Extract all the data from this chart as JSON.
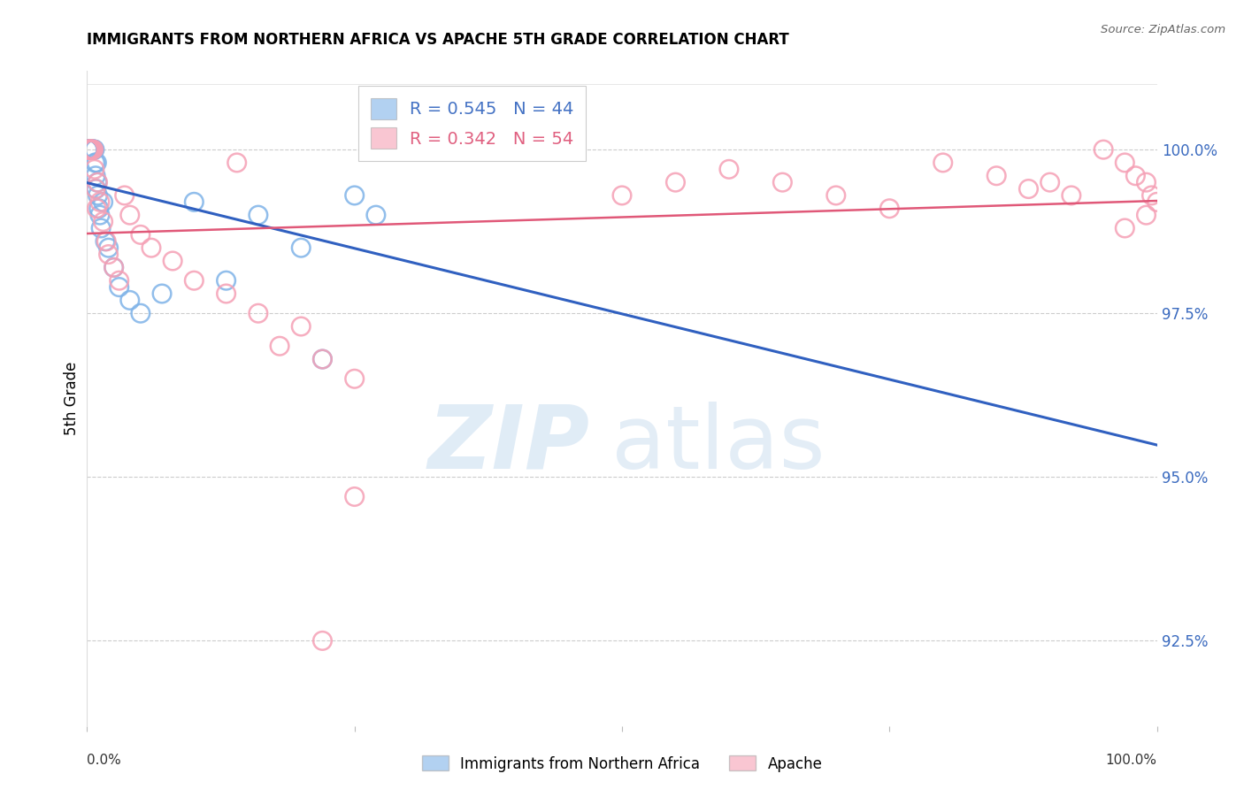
{
  "title": "IMMIGRANTS FROM NORTHERN AFRICA VS APACHE 5TH GRADE CORRELATION CHART",
  "source": "Source: ZipAtlas.com",
  "ylabel": "5th Grade",
  "yticks": [
    92.5,
    95.0,
    97.5,
    100.0
  ],
  "ytick_labels": [
    "92.5%",
    "95.0%",
    "97.5%",
    "100.0%"
  ],
  "xmin": 0.0,
  "xmax": 100.0,
  "ymin": 91.2,
  "ymax": 101.2,
  "blue_R": 0.545,
  "blue_N": 44,
  "pink_R": 0.342,
  "pink_N": 54,
  "blue_color": "#7fb3e8",
  "pink_color": "#f5a0b5",
  "blue_line_color": "#3060c0",
  "pink_line_color": "#e05878",
  "legend_label_blue": "Immigrants from Northern Africa",
  "legend_label_pink": "Apache",
  "blue_x": [
    0.05,
    0.08,
    0.1,
    0.12,
    0.15,
    0.18,
    0.2,
    0.22,
    0.25,
    0.28,
    0.3,
    0.35,
    0.4,
    0.45,
    0.5,
    0.55,
    0.6,
    0.65,
    0.7,
    0.75,
    0.8,
    0.85,
    0.9,
    0.95,
    1.0,
    1.1,
    1.2,
    1.3,
    1.5,
    1.7,
    2.0,
    2.5,
    3.0,
    4.0,
    5.0,
    7.0,
    10.0,
    13.0,
    16.0,
    20.0,
    22.0,
    25.0,
    27.0,
    30.0
  ],
  "blue_y": [
    100.0,
    100.0,
    100.0,
    100.0,
    100.0,
    100.0,
    100.0,
    100.0,
    100.0,
    100.0,
    100.0,
    100.0,
    100.0,
    100.0,
    100.0,
    100.0,
    100.0,
    100.0,
    100.0,
    99.8,
    99.6,
    99.4,
    99.8,
    99.5,
    99.3,
    99.1,
    99.0,
    98.8,
    99.2,
    98.6,
    98.5,
    98.2,
    97.9,
    97.7,
    97.5,
    97.8,
    99.2,
    98.0,
    99.0,
    98.5,
    96.8,
    99.3,
    99.0,
    100.0
  ],
  "pink_x": [
    0.1,
    0.15,
    0.2,
    0.25,
    0.3,
    0.35,
    0.4,
    0.45,
    0.5,
    0.6,
    0.7,
    0.8,
    0.9,
    1.0,
    1.2,
    1.5,
    1.8,
    2.0,
    2.5,
    3.0,
    3.5,
    4.0,
    5.0,
    6.0,
    8.0,
    10.0,
    13.0,
    16.0,
    20.0,
    14.0,
    18.0,
    22.0,
    25.0,
    50.0,
    55.0,
    60.0,
    65.0,
    70.0,
    75.0,
    80.0,
    85.0,
    88.0,
    90.0,
    92.0,
    95.0,
    97.0,
    98.0,
    99.0,
    99.5,
    100.0,
    99.0,
    97.0,
    25.0,
    22.0
  ],
  "pink_y": [
    100.0,
    100.0,
    100.0,
    100.0,
    100.0,
    100.0,
    100.0,
    100.0,
    100.0,
    100.0,
    99.7,
    99.4,
    99.1,
    99.5,
    99.2,
    98.9,
    98.6,
    98.4,
    98.2,
    98.0,
    99.3,
    99.0,
    98.7,
    98.5,
    98.3,
    98.0,
    97.8,
    97.5,
    97.3,
    99.8,
    97.0,
    96.8,
    96.5,
    99.3,
    99.5,
    99.7,
    99.5,
    99.3,
    99.1,
    99.8,
    99.6,
    99.4,
    99.5,
    99.3,
    100.0,
    99.8,
    99.6,
    99.5,
    99.3,
    99.2,
    99.0,
    98.8,
    94.7,
    92.5
  ]
}
